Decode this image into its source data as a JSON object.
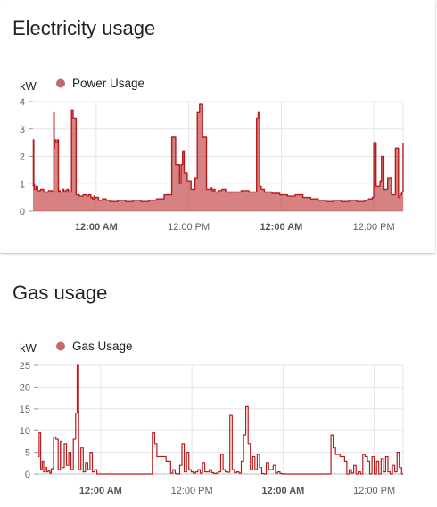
{
  "cards": [
    {
      "title": "Electricity usage"
    },
    {
      "title": "Gas usage"
    }
  ],
  "colors": {
    "series": "#b71c1c",
    "legend_dot": "#c26a6a",
    "grid": "#e6e6e6"
  },
  "chart_data": [
    {
      "type": "area",
      "ylabel": "kW",
      "ylim": [
        0,
        4
      ],
      "yticks": [
        "0",
        "1",
        "2",
        "3",
        "4"
      ],
      "x_range_hours": [
        0,
        48
      ],
      "xticks": [
        {
          "label": "12:00 AM",
          "bold": true,
          "hour": 8.2
        },
        {
          "label": "12:00 PM",
          "bold": false,
          "hour": 20.2
        },
        {
          "label": "12:00 AM",
          "bold": true,
          "hour": 32.2
        },
        {
          "label": "12:00 PM",
          "bold": false,
          "hour": 44.2
        }
      ],
      "series": [
        {
          "name": "Power Usage",
          "x": [
            0,
            0.05,
            0.1,
            0.2,
            0.4,
            0.6,
            1.0,
            1.4,
            2.0,
            2.5,
            2.7,
            2.75,
            2.8,
            3.0,
            3.2,
            3.3,
            3.4,
            3.5,
            3.8,
            4.0,
            4.2,
            4.4,
            4.6,
            4.8,
            5.0,
            5.2,
            5.6,
            6.0,
            6.5,
            7.0,
            7.2,
            7.5,
            7.7,
            7.9,
            8.0,
            8.5,
            9.0,
            9.5,
            10.0,
            11.0,
            12.0,
            13.0,
            14.0,
            15.0,
            16.0,
            17.0,
            18.0,
            18.5,
            19.0,
            19.2,
            19.4,
            19.6,
            20.0,
            20.5,
            21.0,
            21.3,
            21.6,
            22.0,
            22.5,
            23.0,
            23.2,
            23.4,
            23.6,
            24.0,
            24.5,
            25.0,
            26.0,
            27.0,
            28.0,
            29.0,
            29.2,
            29.4,
            29.6,
            30.0,
            31.0,
            32.0,
            33.0,
            34.0,
            35.0,
            36.0,
            37.0,
            38.0,
            39.0,
            40.0,
            41.0,
            42.0,
            43.0,
            43.5,
            44.0,
            44.2,
            44.5,
            45.0,
            45.2,
            45.5,
            46.0,
            46.5,
            47.0,
            47.4,
            47.6,
            47.8,
            48.0
          ],
          "values": [
            0.9,
            2.6,
            1.0,
            0.8,
            0.9,
            0.75,
            0.8,
            0.7,
            0.75,
            0.7,
            3.6,
            2.3,
            2.6,
            2.5,
            2.6,
            0.7,
            0.75,
            0.7,
            0.8,
            0.7,
            0.75,
            0.8,
            0.7,
            0.7,
            3.7,
            3.4,
            0.6,
            0.55,
            0.6,
            0.55,
            0.6,
            0.5,
            0.45,
            0.55,
            0.5,
            0.4,
            0.45,
            0.4,
            0.35,
            0.4,
            0.35,
            0.4,
            0.35,
            0.4,
            0.45,
            0.6,
            2.7,
            1.7,
            1.0,
            1.7,
            2.2,
            1.4,
            1.1,
            0.8,
            1.2,
            3.6,
            3.9,
            2.7,
            0.8,
            0.85,
            0.75,
            0.8,
            0.7,
            0.75,
            0.8,
            0.7,
            0.7,
            0.75,
            0.7,
            3.4,
            3.6,
            0.9,
            0.8,
            0.7,
            0.65,
            0.6,
            0.55,
            0.6,
            0.5,
            0.45,
            0.4,
            0.35,
            0.4,
            0.35,
            0.4,
            0.35,
            0.4,
            0.45,
            0.5,
            2.5,
            0.9,
            1.1,
            2.0,
            0.8,
            1.2,
            0.6,
            2.3,
            0.5,
            0.6,
            0.7,
            2.5
          ]
        }
      ]
    },
    {
      "type": "line",
      "ylabel": "kW",
      "ylim": [
        0,
        25
      ],
      "yticks": [
        "0",
        "5",
        "10",
        "15",
        "20",
        "25"
      ],
      "x_range_hours": [
        0,
        48
      ],
      "xticks": [
        {
          "label": "12:00 AM",
          "bold": true,
          "hour": 8.2
        },
        {
          "label": "12:00 PM",
          "bold": false,
          "hour": 20.2
        },
        {
          "label": "12:00 AM",
          "bold": true,
          "hour": 32.2
        },
        {
          "label": "12:00 PM",
          "bold": false,
          "hour": 44.2
        }
      ],
      "series": [
        {
          "name": "Gas Usage",
          "x": [
            0,
            0.1,
            0.3,
            0.5,
            0.7,
            0.9,
            1.1,
            1.3,
            1.5,
            1.7,
            2.0,
            2.3,
            2.6,
            2.9,
            3.1,
            3.4,
            3.7,
            4.0,
            4.3,
            4.6,
            4.9,
            5.1,
            5.3,
            5.6,
            5.9,
            6.2,
            6.5,
            6.8,
            7.1,
            7.4,
            7.7,
            8.0,
            8.3,
            8.6,
            9.0,
            10,
            11,
            12,
            13,
            14,
            15,
            15.3,
            15.6,
            15.9,
            16.2,
            16.5,
            16.8,
            17.1,
            17.4,
            17.7,
            18.0,
            18.3,
            18.6,
            18.9,
            19.2,
            19.5,
            19.8,
            20.1,
            20.4,
            20.7,
            21.0,
            21.3,
            21.6,
            21.9,
            22.2,
            22.5,
            22.8,
            23.1,
            23.4,
            23.7,
            24.0,
            24.3,
            24.6,
            24.9,
            25.2,
            25.5,
            25.8,
            26.1,
            26.4,
            26.7,
            27.0,
            27.3,
            27.6,
            27.9,
            28.2,
            28.5,
            28.8,
            29.1,
            29.4,
            29.7,
            30.0,
            30.3,
            30.6,
            30.9,
            31.2,
            31.5,
            31.8,
            32.1,
            33,
            34,
            35,
            36,
            37,
            38.5,
            38.8,
            39.1,
            39.4,
            39.7,
            40.0,
            40.3,
            40.6,
            40.9,
            41.2,
            41.5,
            41.8,
            42.1,
            42.4,
            42.7,
            43.0,
            43.3,
            43.6,
            43.9,
            44.2,
            44.5,
            44.8,
            45.1,
            45.4,
            45.7,
            46.0,
            46.3,
            46.6,
            46.9,
            47.2,
            47.5,
            47.8,
            48.0
          ],
          "values": [
            4,
            9.5,
            1,
            3,
            0.5,
            1.5,
            0.5,
            0.8,
            0.2,
            1.2,
            8.5,
            8,
            1,
            7.5,
            1.5,
            7,
            2,
            5,
            1,
            8,
            14,
            25,
            1,
            6,
            0.5,
            2.5,
            1,
            5,
            0.5,
            1,
            0,
            0,
            0,
            0,
            0,
            0,
            0,
            0,
            0,
            0,
            9.5,
            7,
            4,
            4,
            4,
            4,
            3,
            3,
            0.2,
            1,
            0.1,
            0,
            2,
            7,
            0.5,
            5,
            1,
            0.5,
            0.2,
            0.5,
            1,
            0.2,
            2.5,
            0.5,
            0.5,
            1,
            0.3,
            0.1,
            0.2,
            0.5,
            4.5,
            1,
            0.5,
            0.4,
            13.5,
            1,
            0.3,
            0.5,
            0.2,
            3,
            9,
            15.5,
            7,
            1,
            4,
            1,
            4.5,
            1.5,
            0.1,
            0,
            2.5,
            1,
            1,
            2,
            0.2,
            0.5,
            0.1,
            0,
            0,
            0,
            0,
            0,
            0,
            9,
            6,
            4.5,
            4.5,
            4,
            4,
            3,
            0,
            1,
            0.2,
            2,
            0,
            0.5,
            0,
            4.5,
            4,
            3,
            0,
            4,
            0,
            3,
            0,
            3.5,
            0.5,
            4,
            0.5,
            0,
            2,
            0.5,
            5,
            1.5,
            0,
            0
          ]
        }
      ]
    }
  ]
}
